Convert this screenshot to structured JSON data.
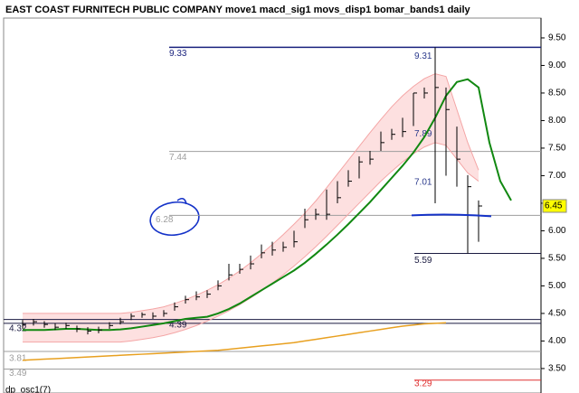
{
  "chart_data": {
    "type": "ohlc",
    "title": "EAST COAST FURNITECH PUBLIC COMPANY move1 macd_sig1 movs_disp1 bomar_bands1  daily",
    "indicator_label": "dp_osc1(7)",
    "ylim": [
      3.22,
      9.86
    ],
    "yticks": [
      {
        "value": 3.5,
        "label": "3.50"
      },
      {
        "value": 4,
        "label": "4.00"
      },
      {
        "value": 4.5,
        "label": "4.50"
      },
      {
        "value": 5,
        "label": "5.00"
      },
      {
        "value": 5.5,
        "label": "5.50"
      },
      {
        "value": 6,
        "label": "6.00"
      },
      {
        "value": 6.5,
        "label": "6.50"
      },
      {
        "value": 7,
        "label": "7.00"
      },
      {
        "value": 7.5,
        "label": "7.50"
      },
      {
        "value": 8,
        "label": "8.00"
      },
      {
        "value": 8.5,
        "label": "8.50"
      },
      {
        "value": 9,
        "label": "9.00"
      },
      {
        "value": 9.5,
        "label": "9.50"
      }
    ],
    "last_price": 6.45,
    "last_price_color": "#ffff00",
    "bars": {
      "color": "#000000",
      "high": [
        4.38,
        4.4,
        4.36,
        4.32,
        4.33,
        4.28,
        4.25,
        4.26,
        4.34,
        4.42,
        4.5,
        4.52,
        4.52,
        4.56,
        4.7,
        4.82,
        4.9,
        4.92,
        5.1,
        5.4,
        5.4,
        5.55,
        5.75,
        5.8,
        5.8,
        6.0,
        6.4,
        6.4,
        6.75,
        6.9,
        7.1,
        7.35,
        7.45,
        7.8,
        7.85,
        8.05,
        8.5,
        8.6,
        9.33,
        8.6,
        7.89,
        7.01,
        6.55
      ],
      "low": [
        4.22,
        4.28,
        4.24,
        4.2,
        4.22,
        4.16,
        4.12,
        4.14,
        4.22,
        4.3,
        4.38,
        4.42,
        4.4,
        4.44,
        4.55,
        4.68,
        4.74,
        4.78,
        4.92,
        5.1,
        5.22,
        5.3,
        5.5,
        5.55,
        5.62,
        5.7,
        6.05,
        6.2,
        6.2,
        6.5,
        6.8,
        6.95,
        7.2,
        7.45,
        7.65,
        7.7,
        7.9,
        8.4,
        6.5,
        7.0,
        6.8,
        5.59,
        5.8
      ],
      "close": [
        4.3,
        4.35,
        4.3,
        4.25,
        4.28,
        4.22,
        4.18,
        4.2,
        4.28,
        4.35,
        4.45,
        4.48,
        4.45,
        4.5,
        4.62,
        4.75,
        4.8,
        4.85,
        5.0,
        5.2,
        5.3,
        5.4,
        5.6,
        5.65,
        5.7,
        5.8,
        6.2,
        6.3,
        6.3,
        6.6,
        6.9,
        7.25,
        7.3,
        7.6,
        7.75,
        7.8,
        8.5,
        8.5,
        8.6,
        8.2,
        7.3,
        6.8,
        6.45
      ]
    },
    "series": [
      {
        "name": "bomar_upper",
        "color": "#f4a6a6",
        "values": [
          4.5,
          4.5,
          4.5,
          4.5,
          4.5,
          4.5,
          4.5,
          4.5,
          4.5,
          4.5,
          4.52,
          4.55,
          4.58,
          4.62,
          4.68,
          4.75,
          4.83,
          4.92,
          5.02,
          5.14,
          5.27,
          5.42,
          5.58,
          5.75,
          5.93,
          6.12,
          6.32,
          6.54,
          6.78,
          7.03,
          7.28,
          7.53,
          7.78,
          8.02,
          8.25,
          8.45,
          8.62,
          8.76,
          8.85,
          8.8,
          8.2,
          7.6,
          7.1,
          null,
          null,
          null
        ]
      },
      {
        "name": "bomar_lower",
        "color": "#f4a6a6",
        "values": [
          3.98,
          3.98,
          3.98,
          3.98,
          3.98,
          3.98,
          3.98,
          3.98,
          3.98,
          3.98,
          4.0,
          4.03,
          4.06,
          4.1,
          4.15,
          4.21,
          4.28,
          4.36,
          4.45,
          4.55,
          4.66,
          4.78,
          4.91,
          5.05,
          5.2,
          5.36,
          5.53,
          5.71,
          5.9,
          6.1,
          6.3,
          6.5,
          6.7,
          6.9,
          7.08,
          7.25,
          7.4,
          7.52,
          7.6,
          7.55,
          7.3,
          7.05,
          6.9,
          null,
          null,
          null
        ]
      },
      {
        "name": "move1",
        "color": "#118811",
        "values": [
          4.2,
          4.2,
          4.2,
          4.21,
          4.22,
          4.22,
          4.21,
          4.2,
          4.2,
          4.21,
          4.23,
          4.26,
          4.29,
          4.32,
          4.36,
          4.4,
          4.42,
          4.44,
          4.5,
          4.58,
          4.68,
          4.8,
          4.92,
          5.04,
          5.16,
          5.28,
          5.42,
          5.58,
          5.75,
          5.93,
          6.12,
          6.32,
          6.52,
          6.74,
          6.96,
          7.18,
          7.42,
          7.7,
          8.05,
          8.45,
          8.7,
          8.75,
          8.6,
          7.6,
          6.9,
          6.55
        ]
      },
      {
        "name": "movs_disp1",
        "color": "#e8a020",
        "values": [
          3.65,
          3.66,
          3.67,
          3.68,
          3.69,
          3.7,
          3.71,
          3.72,
          3.73,
          3.74,
          3.75,
          3.76,
          3.77,
          3.78,
          3.79,
          3.8,
          3.81,
          3.82,
          3.83,
          3.85,
          3.87,
          3.89,
          3.91,
          3.93,
          3.95,
          3.97,
          4.0,
          4.03,
          4.06,
          4.09,
          4.12,
          4.15,
          4.18,
          4.21,
          4.24,
          4.27,
          4.29,
          4.31,
          4.32,
          4.33,
          null,
          null,
          null,
          null,
          null,
          null
        ]
      }
    ],
    "levels": [
      {
        "value": 9.33,
        "color": "#1a237e"
      },
      {
        "value": 7.44,
        "color": "#9e9e9e"
      },
      {
        "value": 6.28,
        "color": "#9e9e9e"
      },
      {
        "value": 4.39,
        "color": "#1a1a40"
      },
      {
        "value": 4.32,
        "color": "#1a1a40"
      },
      {
        "value": 3.81,
        "color": "#9e9e9e"
      },
      {
        "value": 3.49,
        "color": "#9e9e9e"
      },
      {
        "value": 9.31,
        "color": "#2b3a8c"
      },
      {
        "value": 7.89,
        "color": "#2b3a8c"
      },
      {
        "value": 7.01,
        "color": "#2b3a8c"
      },
      {
        "value": 5.59,
        "color": "#1a1a40"
      },
      {
        "value": 3.29,
        "color": "#e03030"
      }
    ],
    "trend_line": {
      "value": 6.28,
      "color": "#1432c8"
    }
  }
}
